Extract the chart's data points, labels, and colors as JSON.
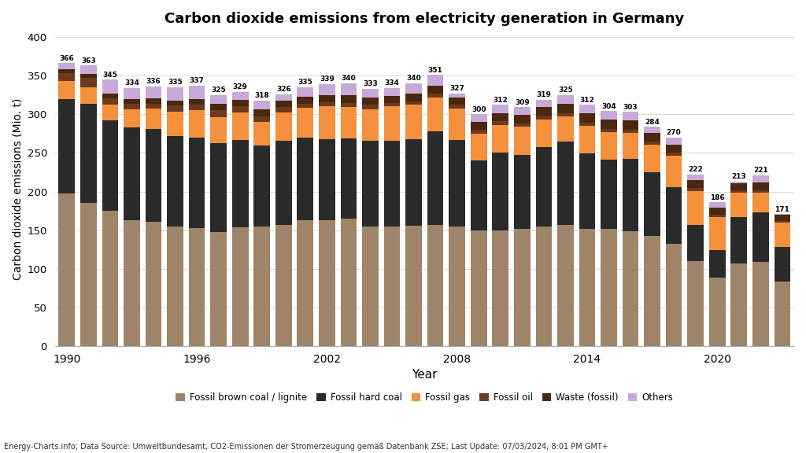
{
  "years": [
    1990,
    1991,
    1992,
    1993,
    1994,
    1995,
    1996,
    1997,
    1998,
    1999,
    2000,
    2001,
    2002,
    2003,
    2004,
    2005,
    2006,
    2007,
    2008,
    2009,
    2010,
    2011,
    2012,
    2013,
    2014,
    2015,
    2016,
    2017,
    2018,
    2019,
    2020,
    2021,
    2022,
    2023
  ],
  "totals": [
    366,
    363,
    345,
    334,
    336,
    335,
    337,
    325,
    329,
    318,
    326,
    335,
    339,
    340,
    333,
    334,
    340,
    351,
    327,
    300,
    312,
    309,
    319,
    325,
    312,
    304,
    303,
    284,
    270,
    222,
    186,
    213,
    221,
    171
  ],
  "lignite": [
    198,
    185,
    175,
    163,
    161,
    155,
    153,
    148,
    154,
    155,
    157,
    163,
    163,
    165,
    155,
    155,
    156,
    157,
    155,
    150,
    150,
    152,
    155,
    157,
    152,
    152,
    149,
    143,
    132,
    110,
    89,
    107,
    109,
    84
  ],
  "hard_coal": [
    122,
    128,
    117,
    120,
    120,
    117,
    117,
    115,
    113,
    105,
    109,
    107,
    105,
    104,
    111,
    111,
    112,
    121,
    112,
    90,
    100,
    95,
    103,
    108,
    97,
    89,
    93,
    82,
    74,
    47,
    35,
    60,
    64,
    44
  ],
  "fossil_gas": [
    23,
    22,
    20,
    23,
    26,
    31,
    35,
    33,
    35,
    30,
    36,
    38,
    42,
    40,
    40,
    44,
    44,
    44,
    40,
    35,
    36,
    37,
    35,
    32,
    36,
    36,
    34,
    36,
    40,
    44,
    43,
    32,
    26,
    32
  ],
  "fossil_oil": [
    10,
    12,
    9,
    7,
    7,
    8,
    7,
    9,
    8,
    7,
    7,
    6,
    6,
    6,
    6,
    5,
    5,
    5,
    5,
    5,
    5,
    4,
    4,
    4,
    4,
    4,
    4,
    4,
    4,
    4,
    3,
    3,
    3,
    2
  ],
  "waste_fossil": [
    5,
    5,
    6,
    7,
    7,
    7,
    8,
    8,
    9,
    9,
    9,
    9,
    9,
    10,
    10,
    9,
    10,
    10,
    10,
    10,
    10,
    11,
    12,
    12,
    12,
    12,
    12,
    11,
    11,
    10,
    9,
    9,
    10,
    8
  ],
  "others": [
    8,
    11,
    18,
    14,
    15,
    17,
    17,
    12,
    10,
    12,
    8,
    12,
    14,
    15,
    11,
    10,
    13,
    14,
    5,
    10,
    11,
    10,
    10,
    12,
    11,
    11,
    11,
    8,
    9,
    7,
    7,
    2,
    9,
    1
  ],
  "colors": {
    "lignite": "#9e8468",
    "hard_coal": "#2a2a2a",
    "fossil_gas": "#f5903c",
    "fossil_oil": "#6b3a1f",
    "waste_fossil": "#4a2810",
    "others": "#c8aad8"
  },
  "title": "Carbon dioxide emissions from electricity generation in Germany",
  "ylabel": "Carbon dioxide emissions (Mio. t)",
  "xlabel": "Year",
  "yticks": [
    0,
    50,
    100,
    150,
    200,
    250,
    300,
    350,
    400
  ],
  "xtick_years": [
    1990,
    1996,
    2002,
    2008,
    2014,
    2020
  ],
  "bg_color": "#ffffff",
  "grid_color": "#dddddd",
  "legend_labels": [
    "Fossil brown coal / lignite",
    "Fossil hard coal",
    "Fossil gas",
    "Fossil oil",
    "Waste (fossil)",
    "Others"
  ],
  "source_text": "Energy-Charts.info; Data Source: Umweltbundesamt, CO2-Emissionen der Stromerzeugung gemäß Datenbank ZSE; Last Update: 07/03/2024, 8:01 PM GMT+"
}
